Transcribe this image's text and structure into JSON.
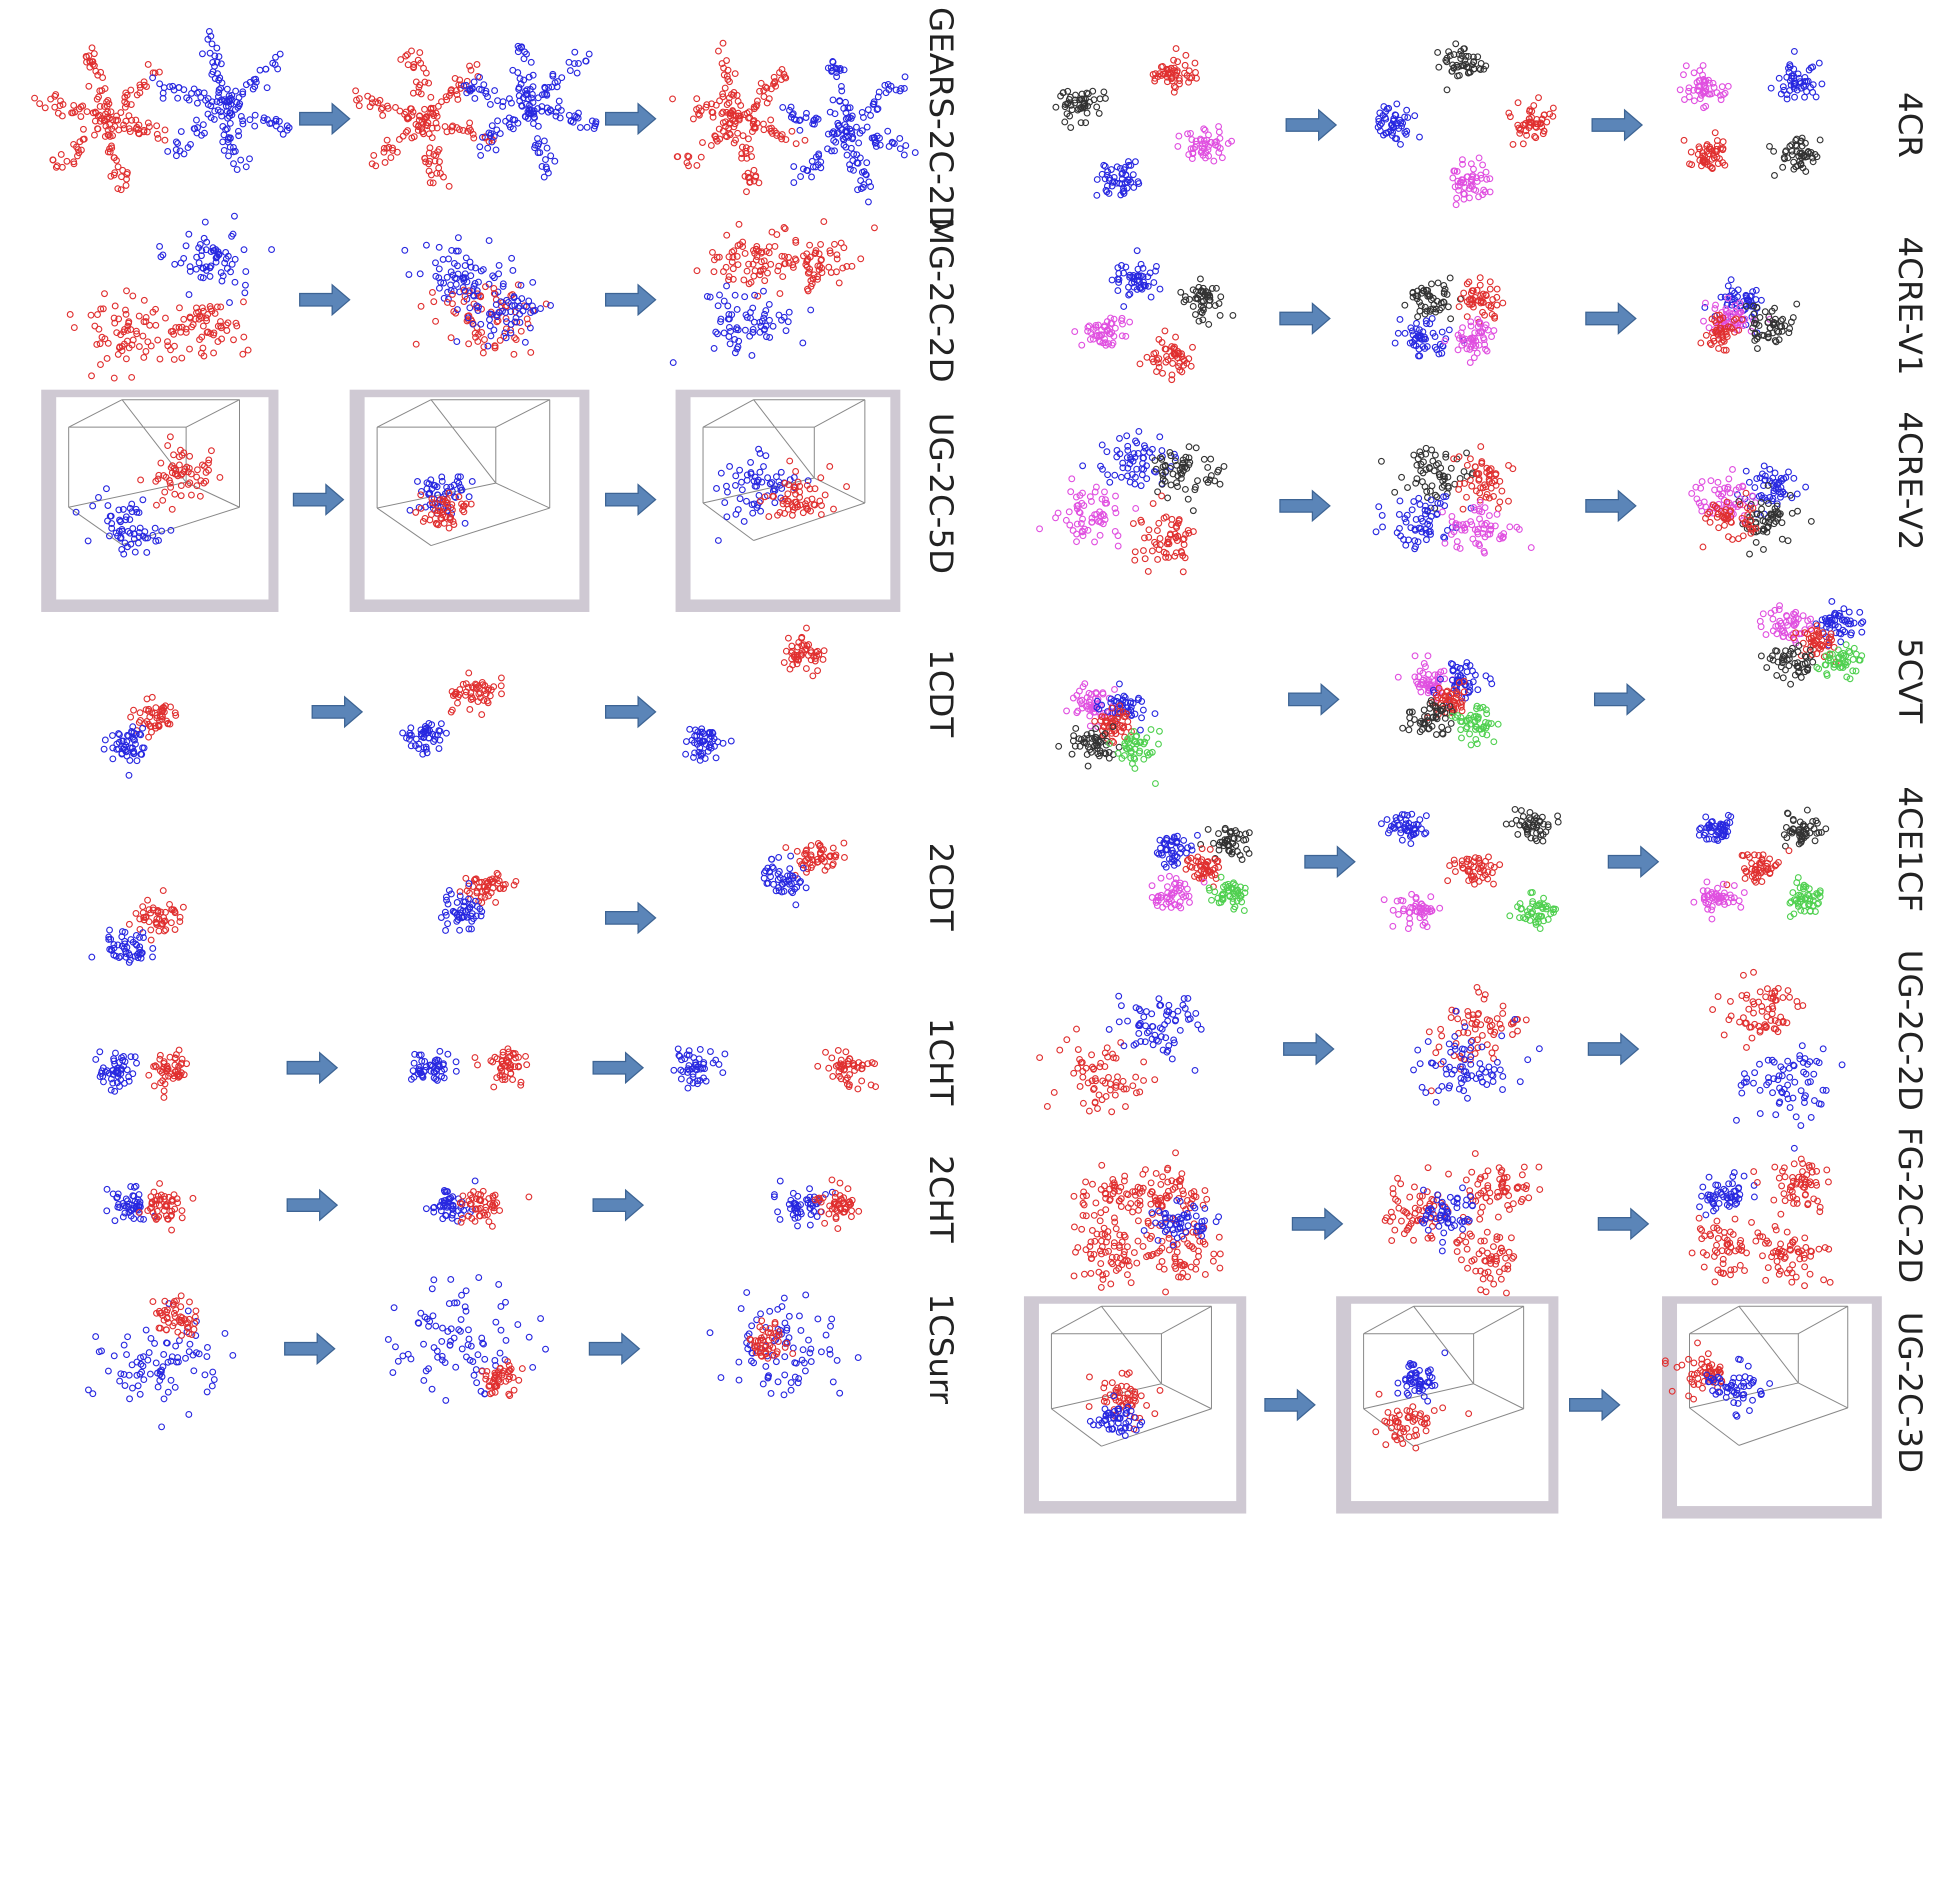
{
  "left_column": {
    "labels": [
      "GEARS-2C-2D",
      "MG-2C-2D",
      "UG-2C-5D",
      "1CDT",
      "2CDT",
      "1CHT",
      "2CHT",
      "1CSurr"
    ]
  },
  "right_column": {
    "labels": [
      "4CR",
      "4CRE-V1",
      "4CRE-V2",
      "5CVT",
      "4CE1CF",
      "UG-2C-2D",
      "FG-2C-2D",
      "UG-2C-3D"
    ]
  }
}
